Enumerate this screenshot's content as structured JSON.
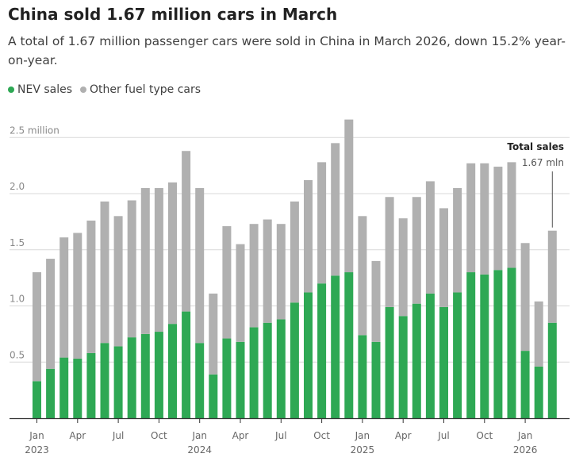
{
  "header": {
    "title": "China sold 1.67 million cars in March",
    "subtitle": "A total of 1.67 million passenger cars were sold in China in March 2026, down 15.2% year-on-year."
  },
  "legend": {
    "nev_label": "NEV sales",
    "other_label": "Other fuel type cars"
  },
  "colors": {
    "nev": "#2ea854",
    "other": "#b0b0b0",
    "grid": "#d9d9d9",
    "axis": "#333333"
  },
  "annotation": {
    "title": "Total sales",
    "value": "1.67 mln"
  },
  "chart_data": {
    "type": "bar",
    "stacked": true,
    "ylim": [
      0,
      2.7
    ],
    "y_ticks": [
      {
        "value": 0.5,
        "label": "0.5"
      },
      {
        "value": 1.0,
        "label": "1.0"
      },
      {
        "value": 1.5,
        "label": "1.5"
      },
      {
        "value": 2.0,
        "label": "2.0"
      },
      {
        "value": 2.5,
        "label": "2.5 million"
      }
    ],
    "x_ticks": [
      {
        "index": 0,
        "month": "Jan",
        "year": "2023"
      },
      {
        "index": 3,
        "month": "Apr",
        "year": ""
      },
      {
        "index": 6,
        "month": "Jul",
        "year": ""
      },
      {
        "index": 9,
        "month": "Oct",
        "year": ""
      },
      {
        "index": 12,
        "month": "Jan",
        "year": "2024"
      },
      {
        "index": 15,
        "month": "Apr",
        "year": ""
      },
      {
        "index": 18,
        "month": "Jul",
        "year": ""
      },
      {
        "index": 21,
        "month": "Oct",
        "year": ""
      },
      {
        "index": 24,
        "month": "Jan",
        "year": "2025"
      },
      {
        "index": 27,
        "month": "Apr",
        "year": ""
      },
      {
        "index": 30,
        "month": "Jul",
        "year": ""
      },
      {
        "index": 33,
        "month": "Oct",
        "year": ""
      },
      {
        "index": 36,
        "month": "Jan",
        "year": "2026"
      }
    ],
    "categories": [
      "2023-01",
      "2023-02",
      "2023-03",
      "2023-04",
      "2023-05",
      "2023-06",
      "2023-07",
      "2023-08",
      "2023-09",
      "2023-10",
      "2023-11",
      "2023-12",
      "2024-01",
      "2024-02",
      "2024-03",
      "2024-04",
      "2024-05",
      "2024-06",
      "2024-07",
      "2024-08",
      "2024-09",
      "2024-10",
      "2024-11",
      "2024-12",
      "2025-01",
      "2025-02",
      "2025-03",
      "2025-04",
      "2025-05",
      "2025-06",
      "2025-07",
      "2025-08",
      "2025-09",
      "2025-10",
      "2025-11",
      "2025-12",
      "2026-01",
      "2026-02",
      "2026-03"
    ],
    "series": [
      {
        "name": "NEV sales",
        "values": [
          0.33,
          0.44,
          0.54,
          0.53,
          0.58,
          0.67,
          0.64,
          0.72,
          0.75,
          0.77,
          0.84,
          0.95,
          0.67,
          0.39,
          0.71,
          0.68,
          0.81,
          0.85,
          0.88,
          1.03,
          1.12,
          1.2,
          1.27,
          1.3,
          0.74,
          0.68,
          0.99,
          0.91,
          1.02,
          1.11,
          0.99,
          1.12,
          1.3,
          1.28,
          1.32,
          1.34,
          0.6,
          0.46,
          0.85
        ]
      },
      {
        "name": "Other fuel type cars",
        "values": [
          0.97,
          0.98,
          1.07,
          1.12,
          1.18,
          1.26,
          1.16,
          1.22,
          1.3,
          1.28,
          1.26,
          1.43,
          1.38,
          0.72,
          1.0,
          0.87,
          0.92,
          0.92,
          0.85,
          0.9,
          1.0,
          1.08,
          1.18,
          1.36,
          1.06,
          0.72,
          0.98,
          0.87,
          0.95,
          1.0,
          0.88,
          0.93,
          0.97,
          0.99,
          0.92,
          0.94,
          0.96,
          0.58,
          0.82
        ]
      }
    ]
  }
}
